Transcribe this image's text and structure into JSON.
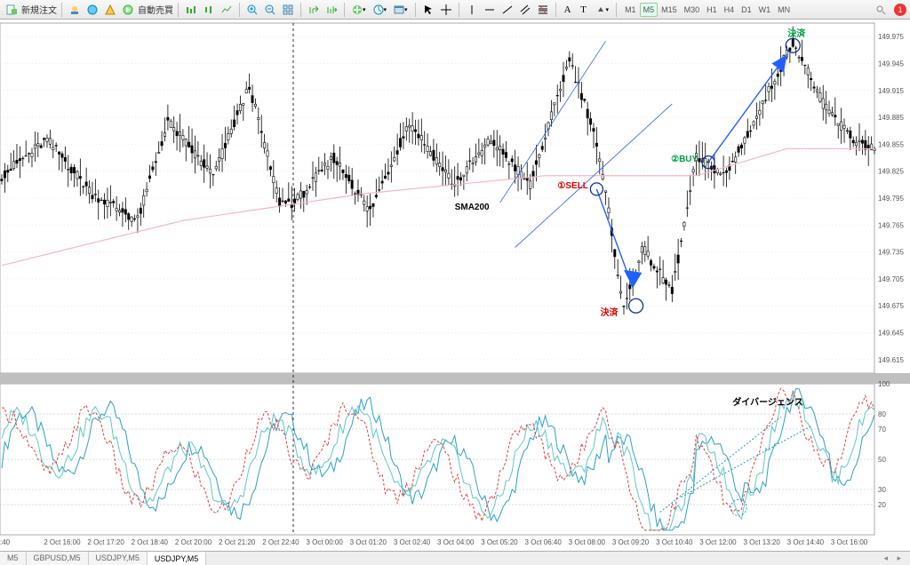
{
  "toolbar": {
    "new_order_label": "新規注文",
    "autotrade_label": "自動売買",
    "timeframes": [
      "M1",
      "M5",
      "M15",
      "M30",
      "H1",
      "H4",
      "D1",
      "W1",
      "MN"
    ],
    "active_tf": "M5",
    "alert_count": "1"
  },
  "price_chart": {
    "type": "candlestick",
    "ylim": [
      149.6,
      149.99
    ],
    "yticks": [
      149.615,
      149.645,
      149.675,
      149.705,
      149.735,
      149.765,
      149.795,
      149.825,
      149.855,
      149.885,
      149.915,
      149.945,
      149.975
    ],
    "grid_color": "#d8d8d8",
    "candle_up_color": "#000000",
    "candle_dn_color": "#000000",
    "wick_color": "#000000",
    "sma200_color": "#f4b8c0",
    "sma200_label": "SMA200",
    "annotations": {
      "sell": {
        "text": "①SELL",
        "color": "#e00000"
      },
      "buy": {
        "text": "②BUY",
        "color": "#00a040"
      },
      "close1": {
        "text": "決済",
        "color": "#e00000"
      },
      "close2": {
        "text": "決済",
        "color": "#00a040"
      },
      "div": {
        "text": "ダイバージェンス",
        "color": "#000000"
      }
    },
    "session_line_x": 330,
    "trend_color": "#2060ff",
    "marker_circle_color": "#103090"
  },
  "oscillator": {
    "type": "stochastic",
    "ylim": [
      0,
      100
    ],
    "yticks": [
      20,
      30,
      50,
      70,
      80,
      100
    ],
    "grid_color": "#b8b8b8",
    "line1_color": "#2aa0c8",
    "line2_color": "#60c8c8",
    "line3_color": "#e04040"
  },
  "xaxis": {
    "labels": [
      ":40",
      "2 Oct 16:00",
      "2 Oct 17:20",
      "2 Oct 18:40",
      "2 Oct 20:00",
      "2 Oct 21:20",
      "2 Oct 22:40",
      "3 Oct 00:00",
      "3 Oct 01:20",
      "3 Oct 02:40",
      "3 Oct 04:00",
      "3 Oct 05:20",
      "3 Oct 06:40",
      "3 Oct 08:00",
      "3 Oct 09:20",
      "3 Oct 10:40",
      "3 Oct 12:00",
      "3 Oct 13:20",
      "3 Oct 14:40",
      "3 Oct 16:00"
    ]
  },
  "tabs": {
    "items": [
      "M5",
      "GBPUSD,M5",
      "USDJPY,M5",
      "USDJPY,M5"
    ],
    "active": 3
  }
}
